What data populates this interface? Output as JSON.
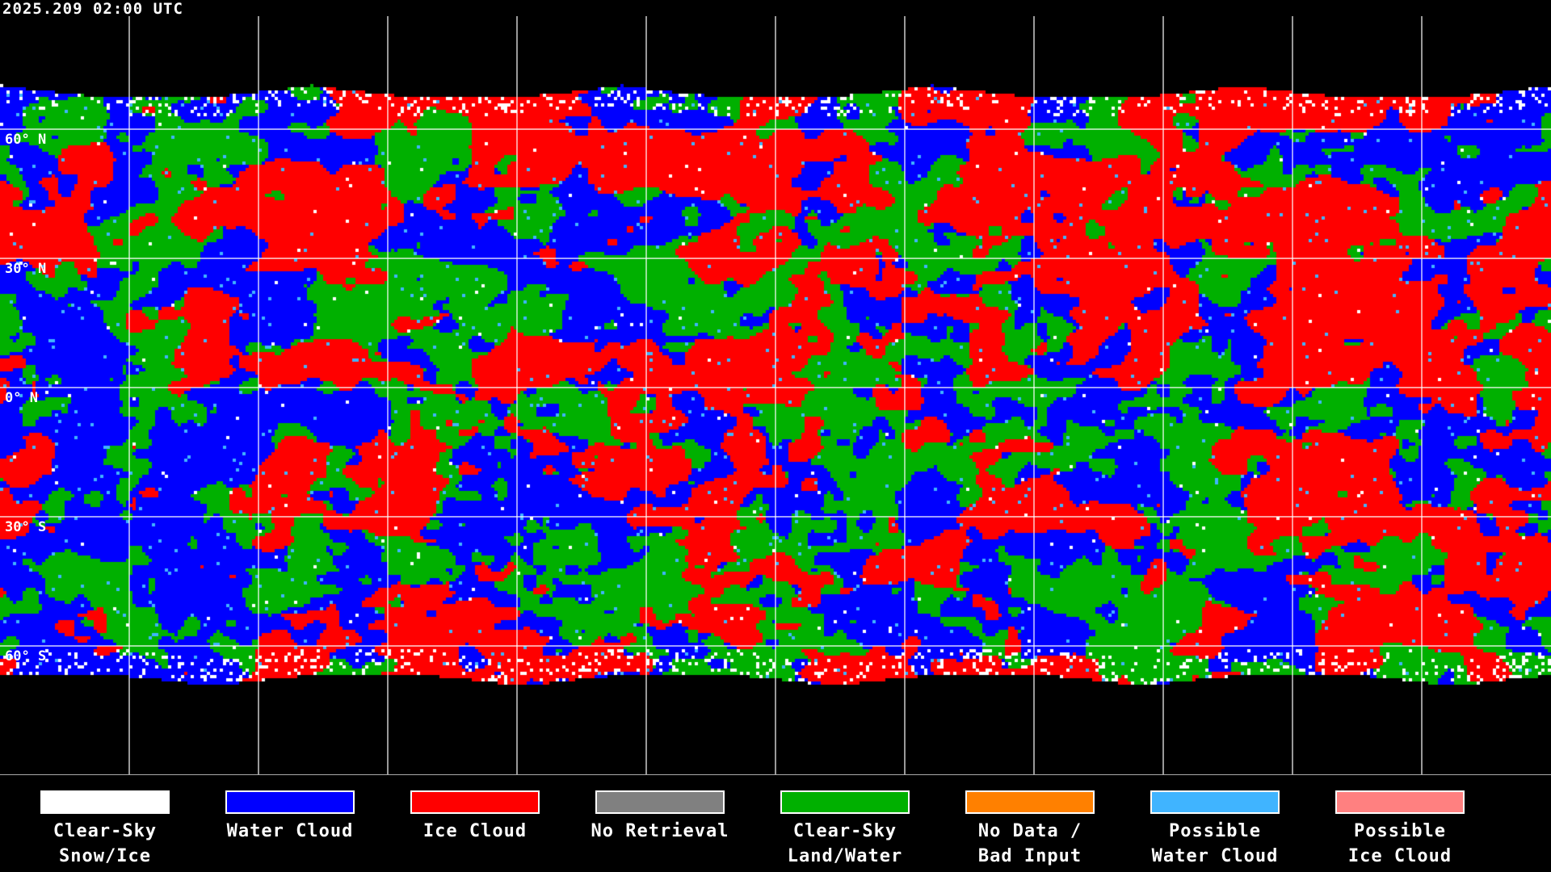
{
  "timestamp": "2025.209 02:00 UTC",
  "map": {
    "projection": "equirectangular",
    "gridlines": true,
    "lat_labels": [
      "60° N",
      "30° N",
      "0° N",
      "30° S",
      "60° S"
    ]
  },
  "legend": [
    {
      "label": "Clear-Sky\nSnow/Ice",
      "color": "#ffffff"
    },
    {
      "label": "Water Cloud",
      "color": "#0000ff"
    },
    {
      "label": "Ice Cloud",
      "color": "#ff0000"
    },
    {
      "label": "No Retrieval",
      "color": "#808080"
    },
    {
      "label": "Clear-Sky\nLand/Water",
      "color": "#00b000"
    },
    {
      "label": "No Data /\nBad Input",
      "color": "#ff8000"
    },
    {
      "label": "Possible\nWater Cloud",
      "color": "#40b4ff"
    },
    {
      "label": "Possible\nIce Cloud",
      "color": "#ff8080"
    }
  ]
}
